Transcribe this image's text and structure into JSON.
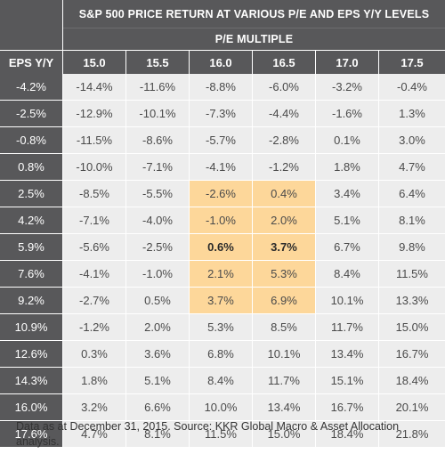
{
  "chart_data": {
    "type": "table",
    "title": "S&P 500 PRICE RETURN AT VARIOUS P/E AND EPS Y/Y LEVELS",
    "column_group_label": "P/E MULTIPLE",
    "row_header_label": "EPS Y/Y",
    "columns": [
      "15.0",
      "15.5",
      "16.0",
      "16.5",
      "17.0",
      "17.5"
    ],
    "rows": [
      {
        "eps": "-4.2%",
        "values": [
          "-14.4%",
          "-11.6%",
          "-8.8%",
          "-6.0%",
          "-3.2%",
          "-0.4%"
        ]
      },
      {
        "eps": "-2.5%",
        "values": [
          "-12.9%",
          "-10.1%",
          "-7.3%",
          "-4.4%",
          "-1.6%",
          "1.3%"
        ]
      },
      {
        "eps": "-0.8%",
        "values": [
          "-11.5%",
          "-8.6%",
          "-5.7%",
          "-2.8%",
          "0.1%",
          "3.0%"
        ]
      },
      {
        "eps": "0.8%",
        "values": [
          "-10.0%",
          "-7.1%",
          "-4.1%",
          "-1.2%",
          "1.8%",
          "4.7%"
        ]
      },
      {
        "eps": "2.5%",
        "values": [
          "-8.5%",
          "-5.5%",
          "-2.6%",
          "0.4%",
          "3.4%",
          "6.4%"
        ]
      },
      {
        "eps": "4.2%",
        "values": [
          "-7.1%",
          "-4.0%",
          "-1.0%",
          "2.0%",
          "5.1%",
          "8.1%"
        ]
      },
      {
        "eps": "5.9%",
        "values": [
          "-5.6%",
          "-2.5%",
          "0.6%",
          "3.7%",
          "6.7%",
          "9.8%"
        ]
      },
      {
        "eps": "7.6%",
        "values": [
          "-4.1%",
          "-1.0%",
          "2.1%",
          "5.3%",
          "8.4%",
          "11.5%"
        ]
      },
      {
        "eps": "9.2%",
        "values": [
          "-2.7%",
          "0.5%",
          "3.7%",
          "6.9%",
          "10.1%",
          "13.3%"
        ]
      },
      {
        "eps": "10.9%",
        "values": [
          "-1.2%",
          "2.0%",
          "5.3%",
          "8.5%",
          "11.7%",
          "15.0%"
        ]
      },
      {
        "eps": "12.6%",
        "values": [
          "0.3%",
          "3.6%",
          "6.8%",
          "10.1%",
          "13.4%",
          "16.7%"
        ]
      },
      {
        "eps": "14.3%",
        "values": [
          "1.8%",
          "5.1%",
          "8.4%",
          "11.7%",
          "15.1%",
          "18.4%"
        ]
      },
      {
        "eps": "16.0%",
        "values": [
          "3.2%",
          "6.6%",
          "10.0%",
          "13.4%",
          "16.7%",
          "20.1%"
        ]
      },
      {
        "eps": "17.6%",
        "values": [
          "4.7%",
          "8.1%",
          "11.5%",
          "15.0%",
          "18.4%",
          "21.8%"
        ]
      }
    ],
    "highlight": {
      "rows": [
        4,
        5,
        6,
        7,
        8
      ],
      "cols": [
        2,
        3
      ],
      "color": "#fdd79a"
    },
    "bold_cells": [
      [
        6,
        2
      ],
      [
        6,
        3
      ]
    ]
  },
  "colors": {
    "header_bg": "#58585a",
    "cell_bg": "#ededed",
    "highlight": "#fdd79a"
  },
  "footnote": "Data as at December 31, 2015. Source: KKR Global Macro & Asset Allocation analysis."
}
